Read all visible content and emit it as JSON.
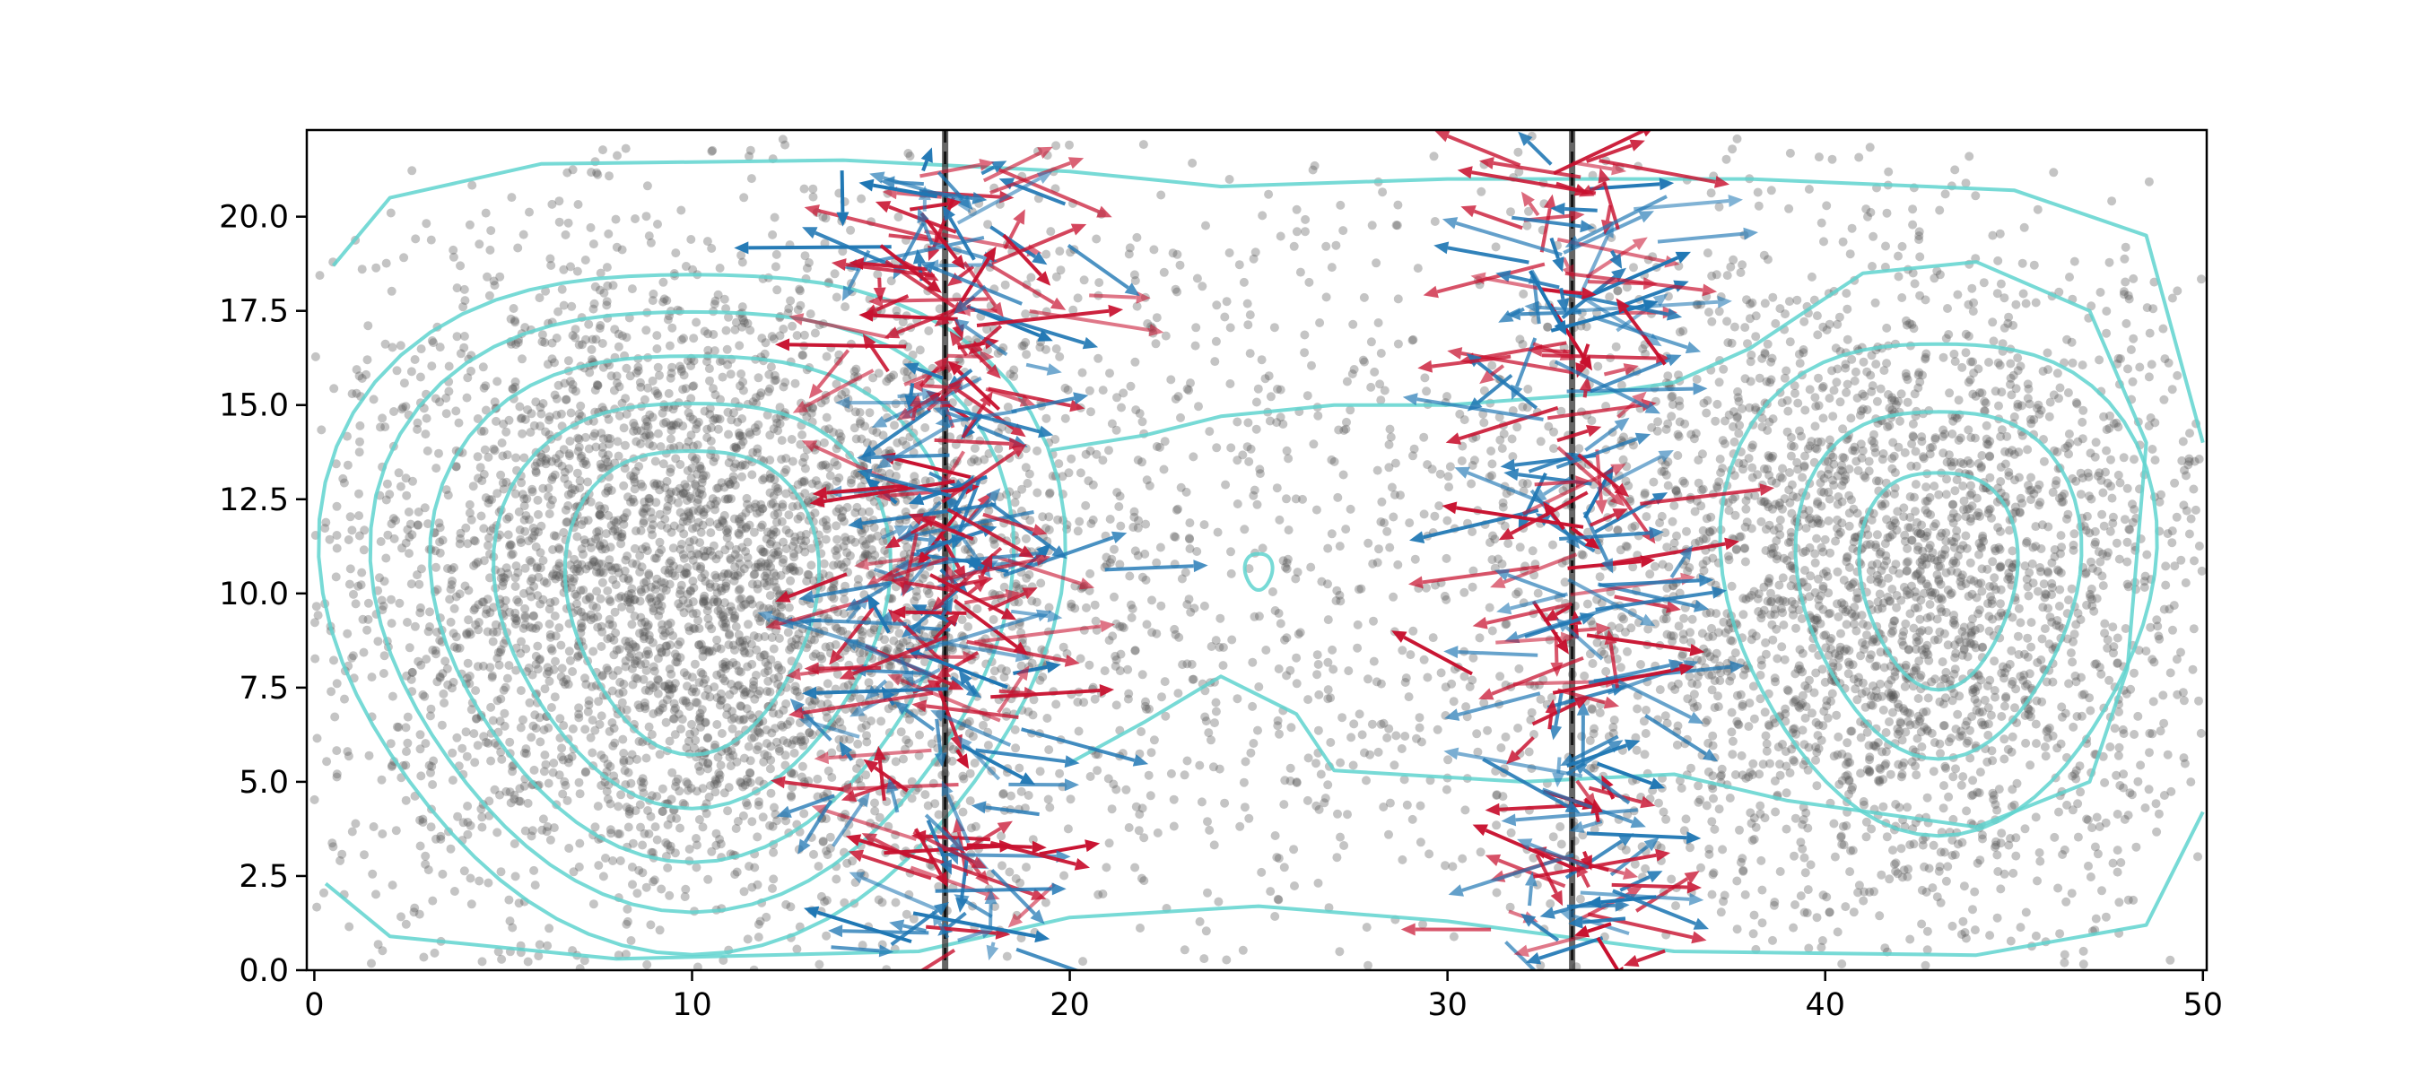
{
  "chart_data": {
    "type": "scatter",
    "title": "",
    "xlabel": "",
    "ylabel": "",
    "xlim": [
      -0.2,
      50.1
    ],
    "ylim": [
      0.0,
      22.3
    ],
    "grid": false,
    "legend": "none",
    "xticks": [
      0,
      10,
      20,
      30,
      40,
      50
    ],
    "xtick_labels": [
      "0",
      "10",
      "20",
      "30",
      "40",
      "50"
    ],
    "yticks": [
      0.0,
      2.5,
      5.0,
      7.5,
      10.0,
      12.5,
      15.0,
      17.5,
      20.0
    ],
    "ytick_labels": [
      "0.0",
      "2.5",
      "5.0",
      "7.5",
      "10.0",
      "12.5",
      "15.0",
      "17.5",
      "20.0"
    ],
    "vertical_lines_x": [
      16.7,
      33.3
    ],
    "colors": {
      "points": "#555555",
      "contour": "#5fd3cf",
      "arrows_red": "#c8102e",
      "arrows_blue": "#1f77b4",
      "vline": "#333333"
    },
    "point_clusters": [
      {
        "cx": 10,
        "cy": 10,
        "sx": 5.0,
        "sy": 4.5,
        "n": 3600
      },
      {
        "cx": 42,
        "cy": 10,
        "sx": 4.5,
        "sy": 4.5,
        "n": 2600
      },
      {
        "cx": 25,
        "cy": 11,
        "sx": 12,
        "sy": 6,
        "n": 1800
      }
    ],
    "contour_levels": [
      {
        "cx": 10.0,
        "cy": 10.0,
        "rx": 3.2,
        "ry": 4.2
      },
      {
        "cx": 10.0,
        "cy": 10.0,
        "rx": 5.0,
        "ry": 5.6
      },
      {
        "cx": 10.0,
        "cy": 10.0,
        "rx": 6.6,
        "ry": 7.0
      },
      {
        "cx": 10.0,
        "cy": 10.0,
        "rx": 8.1,
        "ry": 8.3
      },
      {
        "cx": 10.0,
        "cy": 10.0,
        "rx": 9.4,
        "ry": 9.4
      },
      {
        "cx": 43.0,
        "cy": 10.5,
        "rx": 2.0,
        "ry": 3.0
      },
      {
        "cx": 43.0,
        "cy": 10.5,
        "rx": 3.6,
        "ry": 4.8
      },
      {
        "cx": 43.0,
        "cy": 10.5,
        "rx": 5.5,
        "ry": 6.8
      },
      {
        "cx": 25.0,
        "cy": 10.6,
        "rx": 0.35,
        "ry": 0.5
      }
    ],
    "arrow_groups": [
      {
        "x_center": 16.7,
        "x_spread": 1.6,
        "n_red": 140,
        "n_blue": 140
      },
      {
        "x_center": 33.3,
        "x_spread": 1.2,
        "n_red": 110,
        "n_blue": 90
      }
    ]
  }
}
